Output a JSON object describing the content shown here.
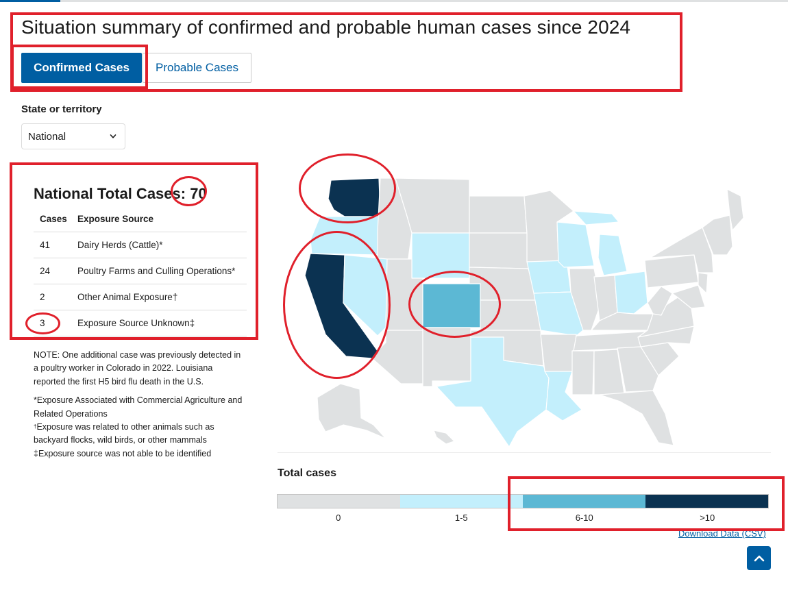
{
  "page": {
    "title": "Situation summary of confirmed and probable human cases since 2024"
  },
  "tabs": [
    {
      "label": "Confirmed Cases",
      "active": true
    },
    {
      "label": "Probable Cases",
      "active": false
    }
  ],
  "state_filter": {
    "label": "State or territory",
    "selected": "National"
  },
  "summary": {
    "heading": "National Total Cases: 70",
    "columns": [
      "Cases",
      "Exposure Source"
    ],
    "rows": [
      {
        "cases": "41",
        "source": "Dairy Herds (Cattle)*"
      },
      {
        "cases": "24",
        "source": "Poultry Farms and Culling Operations*"
      },
      {
        "cases": "2",
        "source": "Other Animal Exposure†"
      },
      {
        "cases": "3",
        "source": "Exposure Source Unknown‡"
      }
    ]
  },
  "notes": {
    "note": "NOTE: One additional case was previously detected in a poultry worker in Colorado in 2022. Louisiana reported the first H5 bird flu death in the U.S.",
    "footnote_1": "*Exposure Associated with Commercial Agriculture and Related Operations",
    "footnote_2_mark": "†",
    "footnote_2": "Exposure was related to other animals such as backyard flocks, wild birds, or other mammals",
    "footnote_3": "‡Exposure source was not able to be identified"
  },
  "map": {
    "legend_title": "Total cases",
    "legend": [
      {
        "label": "0",
        "color": "#dfe1e2"
      },
      {
        "label": "1-5",
        "color": "#c3effc"
      },
      {
        "label": "6-10",
        "color": "#5cb8d4"
      },
      {
        "label": ">10",
        "color": "#0b3251"
      }
    ],
    "state_categories": {
      "WA": ">10",
      "CA": ">10",
      "CO": "6-10",
      "OR": "1-5",
      "NV": "1-5",
      "WY": "1-5",
      "IA": "1-5",
      "MO": "1-5",
      "WI": "1-5",
      "MI": "1-5",
      "OH": "1-5",
      "TX": "1-5",
      "LA": "1-5"
    }
  },
  "download_link": "Download Data (CSV)",
  "icons": {
    "select_chevron": "chevron-down-icon",
    "back_to_top": "chevron-up-icon"
  },
  "annotation_color": "#e0202b"
}
